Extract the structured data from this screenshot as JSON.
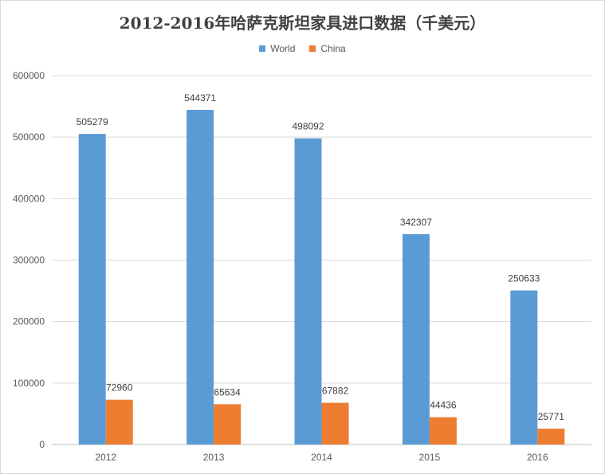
{
  "chart_data": {
    "type": "bar",
    "title": "2012-2016年哈萨克斯坦家具进口数据（千美元）",
    "categories": [
      "2012",
      "2013",
      "2014",
      "2015",
      "2016"
    ],
    "series": [
      {
        "name": "World",
        "color": "#5b9bd5",
        "values": [
          505279,
          544371,
          498092,
          342307,
          250633
        ]
      },
      {
        "name": "China",
        "color": "#ed7d31",
        "values": [
          72960,
          65634,
          67882,
          44436,
          25771
        ]
      }
    ],
    "ylim": [
      0,
      600000
    ],
    "yticks": [
      "0",
      "100000",
      "200000",
      "300000",
      "400000",
      "500000",
      "600000"
    ],
    "xlabel": "",
    "ylabel": "",
    "grid": true,
    "legend_position": "top"
  }
}
